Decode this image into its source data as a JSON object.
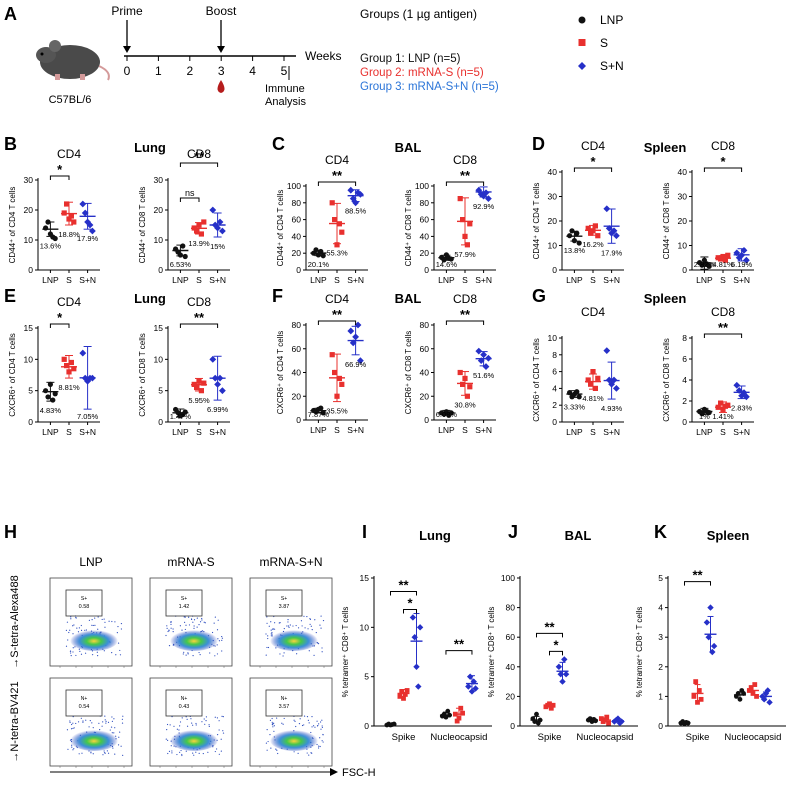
{
  "figure": {
    "panel_letters": [
      "A",
      "B",
      "C",
      "D",
      "E",
      "F",
      "G",
      "H",
      "I",
      "J",
      "K"
    ],
    "colors": {
      "lnp": "#111111",
      "s": "#e8302e",
      "sn": "#2630c8",
      "blood": "#b51c1c"
    }
  },
  "panel_a": {
    "mouse_label": "C57BL/6",
    "prime": "Prime",
    "boost": "Boost",
    "weeks_label": "Weeks",
    "ticks": [
      "0",
      "1",
      "2",
      "3",
      "4",
      "5"
    ],
    "analysis": "Immune\nAnalysis",
    "groups_title": "Groups (1 µg antigen)",
    "groups": [
      "Group 1: LNP (n=5)",
      "Group 2: mRNA-S (n=5)",
      "Group 3: mRNA-S+N (n=5)"
    ],
    "legend": [
      "LNP",
      "S",
      "S+N"
    ]
  },
  "chart_data": [
    {
      "id": "B1",
      "type": "scatter",
      "tissue": "Lung",
      "title": "CD4",
      "ylabel": "CD44⁺ of CD4 T cells",
      "ylim": [
        0,
        30
      ],
      "yticks": [
        0,
        10,
        20,
        30
      ],
      "categories": [
        "LNP",
        "S",
        "S+N"
      ],
      "points": [
        [
          14,
          16,
          12,
          11,
          10.5
        ],
        [
          19,
          22,
          17,
          18,
          16
        ],
        [
          22,
          19,
          16,
          15,
          13
        ]
      ],
      "means": [
        13.6,
        18.8,
        17.9
      ],
      "sd": [
        2.4,
        3.8,
        4.3
      ],
      "labels": [
        "13.6%",
        "18.8%",
        "17.9%"
      ],
      "sig": [
        {
          "a": 0,
          "b": 1,
          "text": "*"
        }
      ]
    },
    {
      "id": "B2",
      "type": "scatter",
      "tissue": "Lung",
      "title": "CD8",
      "ylabel": "CD44⁺ of CD8 T cells",
      "ylim": [
        0,
        30
      ],
      "yticks": [
        0,
        10,
        20,
        30
      ],
      "categories": [
        "LNP",
        "S",
        "S+N"
      ],
      "points": [
        [
          7,
          6,
          5,
          8,
          4.5
        ],
        [
          14,
          13,
          15,
          12,
          16
        ],
        [
          20,
          15,
          14,
          16,
          13
        ]
      ],
      "means": [
        6.5,
        13.9,
        15
      ],
      "sd": [
        1.8,
        1.9,
        4.0
      ],
      "labels": [
        "6.53%",
        "13.9%",
        "15%"
      ],
      "sig": [
        {
          "a": 0,
          "b": 1,
          "text": "ns"
        },
        {
          "a": 0,
          "b": 2,
          "text": "**"
        }
      ]
    },
    {
      "id": "C1",
      "type": "scatter",
      "tissue": "BAL",
      "title": "CD4",
      "ylabel": "CD44⁺ of CD4 T cells",
      "ylim": [
        0,
        100
      ],
      "yticks": [
        0,
        20,
        40,
        60,
        80,
        100
      ],
      "categories": [
        "LNP",
        "S",
        "S+N"
      ],
      "points": [
        [
          20,
          24,
          18,
          22,
          17
        ],
        [
          80,
          60,
          30,
          55,
          45
        ],
        [
          95,
          85,
          80,
          92,
          90
        ]
      ],
      "means": [
        20.1,
        55.3,
        88.5
      ],
      "sd": [
        3,
        24,
        7
      ],
      "labels": [
        "20.1%",
        "55.3%",
        "88.5%"
      ],
      "sig": [
        {
          "a": 0,
          "b": 2,
          "text": "**"
        }
      ]
    },
    {
      "id": "C2",
      "type": "scatter",
      "tissue": "BAL",
      "title": "CD8",
      "ylabel": "CD44⁺ of CD8 T cells",
      "ylim": [
        0,
        100
      ],
      "yticks": [
        0,
        20,
        40,
        60,
        80,
        100
      ],
      "categories": [
        "LNP",
        "S",
        "S+N"
      ],
      "points": [
        [
          15,
          12,
          18,
          14,
          13
        ],
        [
          85,
          60,
          40,
          30,
          55
        ],
        [
          95,
          90,
          88,
          92,
          85
        ]
      ],
      "means": [
        14.6,
        57.9,
        92.9
      ],
      "sd": [
        3,
        28,
        6
      ],
      "labels": [
        "14.6%",
        "57.9%",
        "92.9%"
      ],
      "sig": [
        {
          "a": 0,
          "b": 2,
          "text": "**"
        }
      ]
    },
    {
      "id": "D1",
      "type": "scatter",
      "tissue": "Spleen",
      "title": "CD4",
      "ylabel": "CD44⁺ of CD4 T cells",
      "ylim": [
        0,
        40
      ],
      "yticks": [
        0,
        10,
        20,
        30,
        40
      ],
      "categories": [
        "LNP",
        "S",
        "S+N"
      ],
      "points": [
        [
          14,
          16,
          12,
          15,
          11
        ],
        [
          17,
          15,
          16,
          18,
          14
        ],
        [
          25,
          17,
          15,
          16,
          14
        ]
      ],
      "means": [
        13.8,
        16.2,
        17.9
      ],
      "sd": [
        2,
        2,
        7
      ],
      "labels": [
        "13.8%",
        "16.2%",
        "17.9%"
      ],
      "sig": [
        {
          "a": 0,
          "b": 2,
          "text": "*"
        }
      ]
    },
    {
      "id": "D2",
      "type": "scatter",
      "tissue": "Spleen",
      "title": "CD8",
      "ylabel": "CD44⁺ of CD8 T cells",
      "ylim": [
        0,
        40
      ],
      "yticks": [
        0,
        10,
        20,
        30,
        40
      ],
      "categories": [
        "LNP",
        "S",
        "S+N"
      ],
      "points": [
        [
          3,
          2,
          4,
          2.5,
          1.5
        ],
        [
          5,
          4.5,
          5.5,
          4,
          6
        ],
        [
          7,
          5,
          6,
          8,
          4
        ]
      ],
      "means": [
        2.82,
        4.81,
        6.19
      ],
      "sd": [
        2.5,
        1,
        2.5
      ],
      "labels": [
        "2.82%",
        "4.81%",
        "6.19%"
      ],
      "sig": [
        {
          "a": 0,
          "b": 2,
          "text": "*"
        }
      ]
    },
    {
      "id": "E1",
      "type": "scatter",
      "tissue": "Lung",
      "title": "CD4",
      "ylabel": "CXCR6⁺ of CD4 T cells",
      "ylim": [
        0,
        15
      ],
      "yticks": [
        0,
        5,
        10,
        15
      ],
      "categories": [
        "LNP",
        "S",
        "S+N"
      ],
      "points": [
        [
          5,
          4,
          6,
          3.5,
          4.5
        ],
        [
          10,
          9,
          8,
          9.5,
          8.5
        ],
        [
          11,
          7,
          6.5,
          7,
          7
        ]
      ],
      "means": [
        4.83,
        8.81,
        7.05
      ],
      "sd": [
        1.5,
        1.8,
        5
      ],
      "labels": [
        "4.83%",
        "8.81%",
        "7.05%"
      ],
      "sig": [
        {
          "a": 0,
          "b": 1,
          "text": "*"
        }
      ]
    },
    {
      "id": "E2",
      "type": "scatter",
      "tissue": "Lung",
      "title": "CD8",
      "ylabel": "CXCR6⁺ of CD8 T cells",
      "ylim": [
        0,
        15
      ],
      "yticks": [
        0,
        5,
        10,
        15
      ],
      "categories": [
        "LNP",
        "S",
        "S+N"
      ],
      "points": [
        [
          2,
          1.5,
          1,
          1.2,
          1.6
        ],
        [
          6,
          5.5,
          6.5,
          5,
          6.2
        ],
        [
          10,
          7,
          6,
          7,
          5
        ]
      ],
      "means": [
        1.47,
        5.95,
        6.99
      ],
      "sd": [
        0.6,
        1,
        3.5
      ],
      "labels": [
        "1.47%",
        "5.95%",
        "6.99%"
      ],
      "sig": [
        {
          "a": 0,
          "b": 2,
          "text": "**"
        }
      ]
    },
    {
      "id": "F1",
      "type": "scatter",
      "tissue": "BAL",
      "title": "CD4",
      "ylabel": "CXCR6⁺ of CD4 T cells",
      "ylim": [
        0,
        80
      ],
      "yticks": [
        0,
        20,
        40,
        60,
        80
      ],
      "categories": [
        "LNP",
        "S",
        "S+N"
      ],
      "points": [
        [
          8,
          7,
          9,
          10,
          6
        ],
        [
          55,
          40,
          20,
          35,
          30
        ],
        [
          75,
          65,
          70,
          80,
          50
        ]
      ],
      "means": [
        7.87,
        35.5,
        66.9
      ],
      "sd": [
        2,
        20,
        12
      ],
      "labels": [
        "7.87%",
        "35.5%",
        "66.9%"
      ],
      "sig": [
        {
          "a": 0,
          "b": 2,
          "text": "**"
        }
      ]
    },
    {
      "id": "F2",
      "type": "scatter",
      "tissue": "BAL",
      "title": "CD8",
      "ylabel": "CXCR6⁺ of CD8 T cells",
      "ylim": [
        0,
        80
      ],
      "yticks": [
        0,
        20,
        40,
        60,
        80
      ],
      "categories": [
        "LNP",
        "S",
        "S+N"
      ],
      "points": [
        [
          6,
          5,
          7,
          4,
          6
        ],
        [
          40,
          30,
          35,
          20,
          28
        ],
        [
          58,
          50,
          55,
          45,
          52
        ]
      ],
      "means": [
        6.08,
        30.8,
        51.6
      ],
      "sd": [
        2,
        10,
        6
      ],
      "labels": [
        "6.08%",
        "30.8%",
        "51.6%"
      ],
      "sig": [
        {
          "a": 0,
          "b": 2,
          "text": "**"
        }
      ]
    },
    {
      "id": "G1",
      "type": "scatter",
      "tissue": "Spleen",
      "title": "CD4",
      "ylabel": "CXCR6⁺ of CD4 T cells",
      "ylim": [
        0,
        10
      ],
      "yticks": [
        0,
        2,
        4,
        6,
        8,
        10
      ],
      "categories": [
        "LNP",
        "S",
        "S+N"
      ],
      "points": [
        [
          3.5,
          3,
          3.3,
          3.6,
          3
        ],
        [
          5,
          4.5,
          6,
          4,
          5.2
        ],
        [
          8.5,
          5,
          4.5,
          5,
          4
        ]
      ],
      "means": [
        3.33,
        4.81,
        4.93
      ],
      "sd": [
        0.4,
        0.9,
        2.2
      ],
      "labels": [
        "3.33%",
        "4.81%",
        "4.93%"
      ],
      "sig": []
    },
    {
      "id": "G2",
      "type": "scatter",
      "tissue": "Spleen",
      "title": "CD8",
      "ylabel": "CXCR6⁺ of CD8 T cells",
      "ylim": [
        0,
        8
      ],
      "yticks": [
        0,
        2,
        4,
        6,
        8
      ],
      "categories": [
        "LNP",
        "S",
        "S+N"
      ],
      "points": [
        [
          1,
          0.8,
          1.2,
          1,
          0.9
        ],
        [
          1.4,
          1.8,
          1.2,
          1.5,
          1.6
        ],
        [
          3.5,
          3,
          2.5,
          2.8,
          2.4
        ]
      ],
      "means": [
        1,
        1.41,
        2.83
      ],
      "sd": [
        0.3,
        0.5,
        0.6
      ],
      "labels": [
        "1%",
        "1.41%",
        "2.83%"
      ],
      "sig": [
        {
          "a": 0,
          "b": 2,
          "text": "**"
        }
      ]
    },
    {
      "id": "I",
      "type": "scatter",
      "tissue": "Lung",
      "title": "",
      "ylabel": "% tetramer⁺ CD8⁺ T cells",
      "ylim": [
        0,
        15
      ],
      "yticks": [
        0,
        5,
        10,
        15
      ],
      "groups": [
        "Spike",
        "Nucleocapsid"
      ],
      "points": [
        [
          [
            0.1,
            0.2,
            0.1,
            0.15,
            0.2
          ],
          [
            3,
            3.5,
            2.8,
            3.2,
            3.6
          ],
          [
            11,
            9,
            6,
            4,
            10
          ]
        ],
        [
          [
            1,
            1.2,
            0.9,
            1.5,
            1.1
          ],
          [
            1.2,
            0.5,
            0.8,
            1.8,
            1.3
          ],
          [
            4,
            5,
            3.5,
            4.5,
            3.8
          ]
        ]
      ],
      "means": [
        [
          0.15,
          3.3,
          8.6
        ],
        [
          1.1,
          1.2,
          4.3
        ]
      ],
      "sd": [
        [
          0.1,
          0.4,
          2.8
        ],
        [
          0.3,
          0.6,
          0.8
        ]
      ],
      "sig": [
        {
          "g": 0,
          "a": 0,
          "b": 2,
          "text": "**"
        },
        {
          "g": 0,
          "a": 1,
          "b": 2,
          "text": "*"
        },
        {
          "g": 1,
          "a": 0,
          "b": 2,
          "text": "**"
        }
      ]
    },
    {
      "id": "J",
      "type": "scatter",
      "tissue": "BAL",
      "title": "",
      "ylabel": "% tetramer⁺ CD8⁺ T cells",
      "ylim": [
        0,
        100
      ],
      "yticks": [
        0,
        20,
        40,
        60,
        80,
        100
      ],
      "groups": [
        "Spike",
        "Nucleocapsid"
      ],
      "points": [
        [
          [
            5,
            3,
            8,
            2,
            4
          ],
          [
            13,
            14,
            15,
            12,
            14
          ],
          [
            40,
            35,
            30,
            45,
            35
          ]
        ],
        [
          [
            4,
            5,
            3,
            4.5,
            3.5
          ],
          [
            5,
            3,
            4,
            6,
            2
          ],
          [
            3,
            4,
            5,
            2,
            3
          ]
        ]
      ],
      "means": [
        [
          4,
          14,
          37
        ],
        [
          4,
          4,
          3.5
        ]
      ],
      "sd": [
        [
          2.5,
          1.2,
          6
        ],
        [
          0.8,
          1.5,
          1.2
        ]
      ],
      "sig": [
        {
          "g": 0,
          "a": 0,
          "b": 2,
          "text": "**"
        },
        {
          "g": 0,
          "a": 1,
          "b": 2,
          "text": "*"
        }
      ]
    },
    {
      "id": "K",
      "type": "scatter",
      "tissue": "Spleen",
      "title": "",
      "ylabel": "% tetramer⁺ CD8⁺ T cells",
      "ylim": [
        0,
        5
      ],
      "yticks": [
        0,
        1,
        2,
        3,
        4,
        5
      ],
      "groups": [
        "Spike",
        "Nucleocapsid"
      ],
      "points": [
        [
          [
            0.1,
            0.15,
            0.08,
            0.12,
            0.1
          ],
          [
            1,
            1.5,
            0.8,
            1.2,
            0.9
          ],
          [
            3.5,
            3,
            4,
            2.5,
            2.7
          ]
        ],
        [
          [
            1,
            1.1,
            0.9,
            1.2,
            1.1
          ],
          [
            1.2,
            1.3,
            1.1,
            1.4,
            1
          ],
          [
            1,
            0.9,
            1.1,
            1.2,
            0.8
          ]
        ]
      ],
      "means": [
        [
          0.11,
          1.1,
          3.1
        ],
        [
          1.05,
          1.2,
          1.0
        ]
      ],
      "sd": [
        [
          0.03,
          0.3,
          0.6
        ],
        [
          0.1,
          0.15,
          0.15
        ]
      ],
      "sig": [
        {
          "g": 0,
          "a": 0,
          "b": 2,
          "text": "**"
        }
      ]
    }
  ],
  "panel_h": {
    "columns": [
      "LNP",
      "mRNA-S",
      "mRNA-S+N"
    ],
    "y_labels": [
      "S-tetra-Alexa488",
      "N-tetra-BV421"
    ],
    "x_label": "FSC-H",
    "gate_names": [
      "S+",
      "N+"
    ],
    "gate_values": [
      [
        "0.58",
        "1.42",
        "3.87"
      ],
      [
        "0.54",
        "0.43",
        "3.57"
      ]
    ]
  }
}
